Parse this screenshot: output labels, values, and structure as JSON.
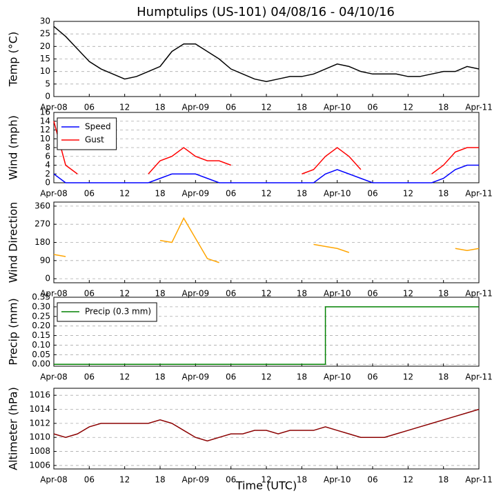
{
  "title": "Humptulips (US-101) 04/08/16 - 04/10/16",
  "xlabel": "Time (UTC)",
  "x": [
    0,
    2,
    4,
    6,
    8,
    10,
    12,
    14,
    16,
    18,
    20,
    22,
    24,
    26,
    28,
    30,
    32,
    34,
    36,
    38,
    40,
    42,
    44,
    46,
    48,
    50,
    52,
    54,
    56,
    58,
    60,
    62,
    64,
    66,
    68,
    70,
    72
  ],
  "xlim": [
    0,
    72
  ],
  "xticks": [
    {
      "value": 0,
      "label": "Apr-08"
    },
    {
      "value": 6,
      "label": "06"
    },
    {
      "value": 12,
      "label": "12"
    },
    {
      "value": 18,
      "label": "18"
    },
    {
      "value": 24,
      "label": "Apr-09"
    },
    {
      "value": 30,
      "label": "06"
    },
    {
      "value": 36,
      "label": "12"
    },
    {
      "value": 42,
      "label": "18"
    },
    {
      "value": 48,
      "label": "Apr-10"
    },
    {
      "value": 54,
      "label": "06"
    },
    {
      "value": 60,
      "label": "12"
    },
    {
      "value": 66,
      "label": "18"
    },
    {
      "value": 72,
      "label": "Apr-11"
    }
  ],
  "chart_data": [
    {
      "type": "line",
      "ylabel": "Temp (°C)",
      "ylim": [
        0,
        30
      ],
      "yticks": [
        0,
        5,
        10,
        15,
        20,
        25,
        30
      ],
      "grid": true,
      "series": [
        {
          "color": "#000000",
          "values": [
            28,
            24,
            19,
            14,
            11,
            9,
            7,
            8,
            10,
            12,
            18,
            21,
            21,
            18,
            15,
            11,
            9,
            7,
            6,
            7,
            8,
            8,
            9,
            11,
            13,
            12,
            10,
            9,
            9,
            9,
            8,
            8,
            9,
            10,
            10,
            12,
            11
          ]
        }
      ]
    },
    {
      "type": "line",
      "ylabel": "Wind (mph)",
      "ylim": [
        0,
        16
      ],
      "yticks": [
        0,
        2,
        4,
        6,
        8,
        10,
        12,
        14,
        16
      ],
      "grid": true,
      "legend": "upper left",
      "series": [
        {
          "name": "Speed",
          "color": "#0000ff",
          "values": [
            2,
            0,
            0,
            0,
            0,
            0,
            0,
            0,
            0,
            1,
            2,
            2,
            2,
            1,
            0,
            0,
            0,
            0,
            0,
            0,
            0,
            0,
            0,
            2,
            3,
            2,
            1,
            0,
            0,
            0,
            0,
            0,
            0,
            1,
            3,
            4,
            4
          ]
        },
        {
          "name": "Gust",
          "color": "#ff0000",
          "values": [
            14,
            4,
            2,
            null,
            null,
            null,
            null,
            null,
            2,
            5,
            6,
            8,
            6,
            5,
            5,
            4,
            null,
            null,
            null,
            null,
            null,
            2,
            3,
            6,
            8,
            6,
            3,
            null,
            null,
            null,
            null,
            null,
            2,
            4,
            7,
            8,
            8
          ]
        }
      ]
    },
    {
      "type": "line",
      "ylabel": "Wind Direction",
      "ylim": [
        -20,
        380
      ],
      "yticks": [
        0,
        90,
        180,
        270,
        360
      ],
      "grid": true,
      "series": [
        {
          "color": "#ffa500",
          "values": [
            120,
            110,
            null,
            null,
            null,
            null,
            null,
            null,
            null,
            190,
            180,
            300,
            200,
            100,
            80,
            null,
            null,
            null,
            null,
            null,
            null,
            null,
            170,
            160,
            150,
            130,
            null,
            null,
            null,
            null,
            null,
            null,
            null,
            null,
            150,
            140,
            150
          ]
        }
      ]
    },
    {
      "type": "line",
      "step": true,
      "ylabel": "Precip (mm)",
      "ylim": [
        -0.01,
        0.35
      ],
      "yticks": [
        {
          "value": 0,
          "label": "0.00"
        },
        {
          "value": 0.05,
          "label": "0.05"
        },
        {
          "value": 0.1,
          "label": "0.10"
        },
        {
          "value": 0.15,
          "label": "0.15"
        },
        {
          "value": 0.2,
          "label": "0.20"
        },
        {
          "value": 0.25,
          "label": "0.25"
        },
        {
          "value": 0.3,
          "label": "0.30"
        },
        {
          "value": 0.35,
          "label": "0.35"
        }
      ],
      "grid": true,
      "legend": "upper left",
      "series": [
        {
          "name": "Precip (0.3 mm)",
          "color": "#008000",
          "values": [
            0,
            0,
            0,
            0,
            0,
            0,
            0,
            0,
            0,
            0,
            0,
            0,
            0,
            0,
            0,
            0,
            0,
            0,
            0,
            0,
            0,
            0,
            0,
            0.3,
            0.3,
            0.3,
            0.3,
            0.3,
            0.3,
            0.3,
            0.3,
            0.3,
            0.3,
            0.3,
            0.3,
            0.3,
            0.3
          ]
        }
      ]
    },
    {
      "type": "line",
      "ylabel": "Altimeter (hPa)",
      "ylim": [
        1005.5,
        1017
      ],
      "yticks": [
        1006,
        1008,
        1010,
        1012,
        1014,
        1016
      ],
      "grid": true,
      "series": [
        {
          "color": "#8b0000",
          "values": [
            1010.5,
            1010,
            1010.5,
            1011.5,
            1012,
            1012,
            1012,
            1012,
            1012,
            1012.5,
            1012,
            1011,
            1010,
            1009.5,
            1010,
            1010.5,
            1010.5,
            1011,
            1011,
            1010.5,
            1011,
            1011,
            1011,
            1011.5,
            1011,
            1010.5,
            1010,
            1010,
            1010,
            1010.5,
            1011,
            1011.5,
            1012,
            1012.5,
            1013,
            1013.5,
            1014
          ]
        }
      ]
    }
  ]
}
